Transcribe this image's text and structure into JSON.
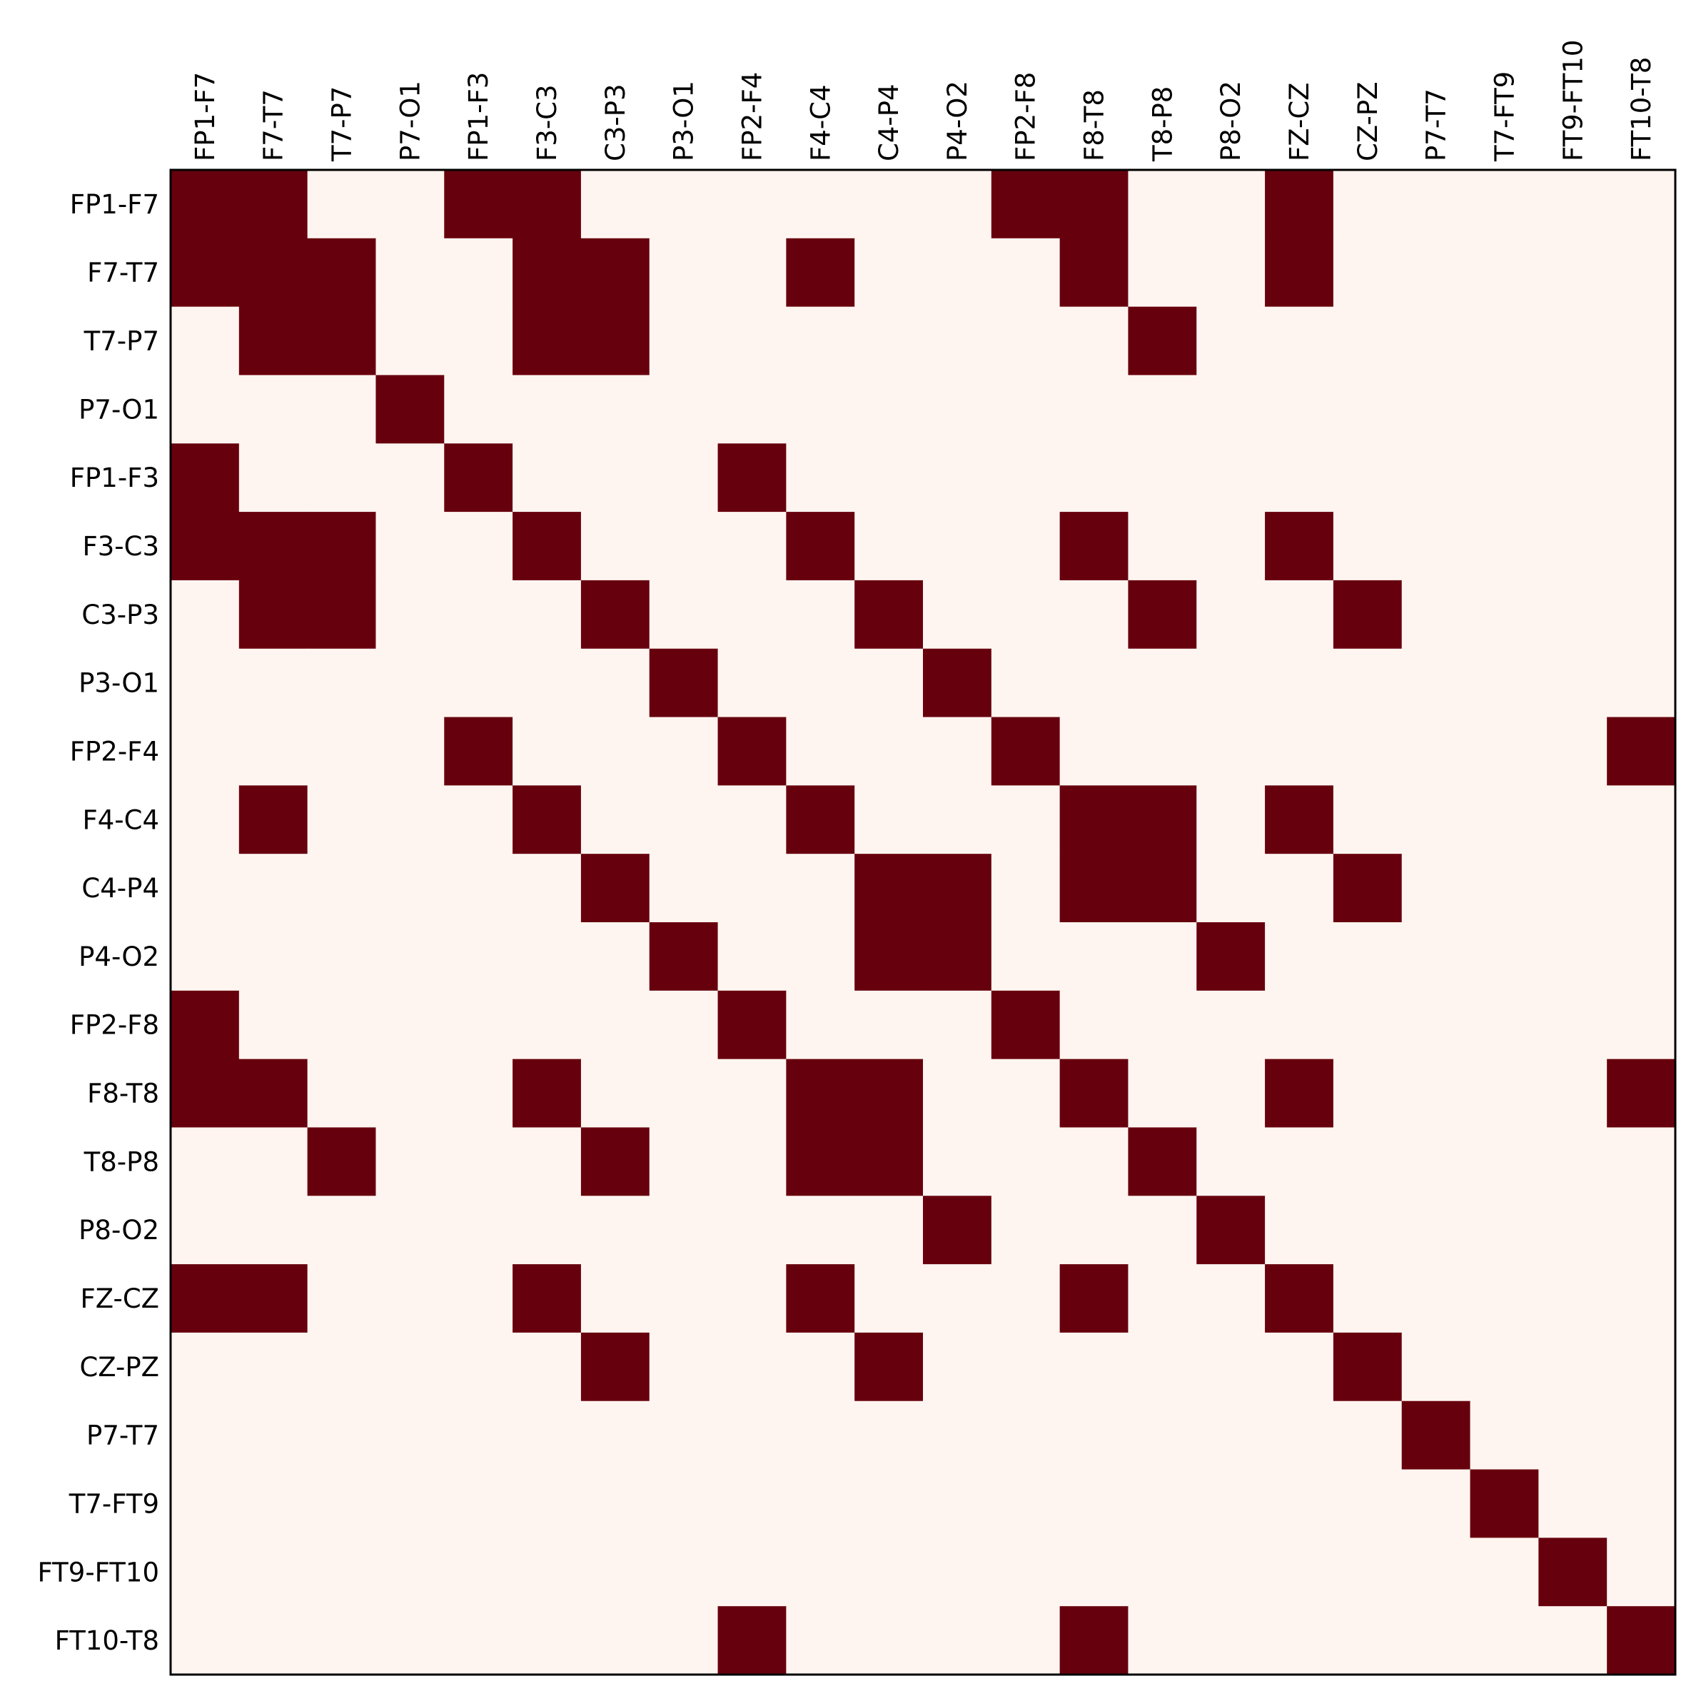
{
  "chart_data": {
    "type": "heatmap",
    "title": "",
    "xlabel": "",
    "ylabel": "",
    "x_tick_position": "top",
    "grid": false,
    "legend": "none",
    "colors": {
      "on": "#67000d",
      "off": "#fff5f0",
      "frame": "#000000"
    },
    "labels": [
      "FP1-F7",
      "F7-T7",
      "T7-P7",
      "P7-O1",
      "FP1-F3",
      "F3-C3",
      "C3-P3",
      "P3-O1",
      "FP2-F4",
      "F4-C4",
      "C4-P4",
      "P4-O2",
      "FP2-F8",
      "F8-T8",
      "T8-P8",
      "P8-O2",
      "FZ-CZ",
      "CZ-PZ",
      "P7-T7",
      "T7-FT9",
      "FT9-FT10",
      "FT10-T8"
    ],
    "matrix": [
      [
        1,
        1,
        0,
        0,
        1,
        1,
        0,
        0,
        0,
        0,
        0,
        0,
        1,
        1,
        0,
        0,
        1,
        0,
        0,
        0,
        0,
        0
      ],
      [
        1,
        1,
        1,
        0,
        0,
        1,
        1,
        0,
        0,
        1,
        0,
        0,
        0,
        1,
        0,
        0,
        1,
        0,
        0,
        0,
        0,
        0
      ],
      [
        0,
        1,
        1,
        0,
        0,
        1,
        1,
        0,
        0,
        0,
        0,
        0,
        0,
        0,
        1,
        0,
        0,
        0,
        0,
        0,
        0,
        0
      ],
      [
        0,
        0,
        0,
        1,
        0,
        0,
        0,
        0,
        0,
        0,
        0,
        0,
        0,
        0,
        0,
        0,
        0,
        0,
        0,
        0,
        0,
        0
      ],
      [
        1,
        0,
        0,
        0,
        1,
        0,
        0,
        0,
        1,
        0,
        0,
        0,
        0,
        0,
        0,
        0,
        0,
        0,
        0,
        0,
        0,
        0
      ],
      [
        1,
        1,
        1,
        0,
        0,
        1,
        0,
        0,
        0,
        1,
        0,
        0,
        0,
        1,
        0,
        0,
        1,
        0,
        0,
        0,
        0,
        0
      ],
      [
        0,
        1,
        1,
        0,
        0,
        0,
        1,
        0,
        0,
        0,
        1,
        0,
        0,
        0,
        1,
        0,
        0,
        1,
        0,
        0,
        0,
        0
      ],
      [
        0,
        0,
        0,
        0,
        0,
        0,
        0,
        1,
        0,
        0,
        0,
        1,
        0,
        0,
        0,
        0,
        0,
        0,
        0,
        0,
        0,
        0
      ],
      [
        0,
        0,
        0,
        0,
        1,
        0,
        0,
        0,
        1,
        0,
        0,
        0,
        1,
        0,
        0,
        0,
        0,
        0,
        0,
        0,
        0,
        1
      ],
      [
        0,
        1,
        0,
        0,
        0,
        1,
        0,
        0,
        0,
        1,
        0,
        0,
        0,
        1,
        1,
        0,
        1,
        0,
        0,
        0,
        0,
        0
      ],
      [
        0,
        0,
        0,
        0,
        0,
        0,
        1,
        0,
        0,
        0,
        1,
        1,
        0,
        1,
        1,
        0,
        0,
        1,
        0,
        0,
        0,
        0
      ],
      [
        0,
        0,
        0,
        0,
        0,
        0,
        0,
        1,
        0,
        0,
        1,
        1,
        0,
        0,
        0,
        1,
        0,
        0,
        0,
        0,
        0,
        0
      ],
      [
        1,
        0,
        0,
        0,
        0,
        0,
        0,
        0,
        1,
        0,
        0,
        0,
        1,
        0,
        0,
        0,
        0,
        0,
        0,
        0,
        0,
        0
      ],
      [
        1,
        1,
        0,
        0,
        0,
        1,
        0,
        0,
        0,
        1,
        1,
        0,
        0,
        1,
        0,
        0,
        1,
        0,
        0,
        0,
        0,
        1
      ],
      [
        0,
        0,
        1,
        0,
        0,
        0,
        1,
        0,
        0,
        1,
        1,
        0,
        0,
        0,
        1,
        0,
        0,
        0,
        0,
        0,
        0,
        0
      ],
      [
        0,
        0,
        0,
        0,
        0,
        0,
        0,
        0,
        0,
        0,
        0,
        1,
        0,
        0,
        0,
        1,
        0,
        0,
        0,
        0,
        0,
        0
      ],
      [
        1,
        1,
        0,
        0,
        0,
        1,
        0,
        0,
        0,
        1,
        0,
        0,
        0,
        1,
        0,
        0,
        1,
        0,
        0,
        0,
        0,
        0
      ],
      [
        0,
        0,
        0,
        0,
        0,
        0,
        1,
        0,
        0,
        0,
        1,
        0,
        0,
        0,
        0,
        0,
        0,
        1,
        0,
        0,
        0,
        0
      ],
      [
        0,
        0,
        0,
        0,
        0,
        0,
        0,
        0,
        0,
        0,
        0,
        0,
        0,
        0,
        0,
        0,
        0,
        0,
        1,
        0,
        0,
        0
      ],
      [
        0,
        0,
        0,
        0,
        0,
        0,
        0,
        0,
        0,
        0,
        0,
        0,
        0,
        0,
        0,
        0,
        0,
        0,
        0,
        1,
        0,
        0
      ],
      [
        0,
        0,
        0,
        0,
        0,
        0,
        0,
        0,
        0,
        0,
        0,
        0,
        0,
        0,
        0,
        0,
        0,
        0,
        0,
        0,
        1,
        0
      ],
      [
        0,
        0,
        0,
        0,
        0,
        0,
        0,
        0,
        1,
        0,
        0,
        0,
        0,
        1,
        0,
        0,
        0,
        0,
        0,
        0,
        0,
        1
      ]
    ]
  }
}
